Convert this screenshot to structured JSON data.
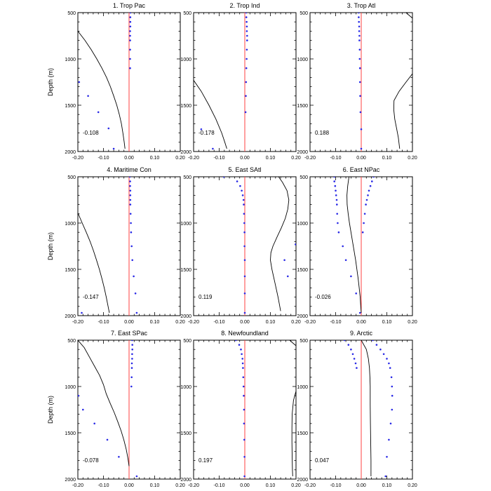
{
  "figure": {
    "ylabel": "Depth (m)",
    "colors": {
      "zero_line": "#ff4040",
      "dots": "#2a2ae6",
      "curve": "#000000",
      "axes": "#000000"
    }
  },
  "chart_data": [
    {
      "type": "scatter",
      "title": "1. Trop Pac",
      "annotation": "-0.108",
      "xlim": [
        -0.2,
        0.2
      ],
      "ylim": [
        2000,
        500
      ],
      "xticks": [
        "-0.20",
        "-0.10",
        "0.00",
        "0.10",
        "0.20"
      ],
      "yticks": [
        "500",
        "1000",
        "1500",
        "2000"
      ],
      "series": [
        {
          "kind": "points",
          "depth": [
            500,
            550,
            600,
            650,
            700,
            750,
            800,
            900,
            1000,
            1100,
            1250,
            1400,
            1575,
            1750,
            1970
          ],
          "x": [
            0.005,
            0.005,
            0.005,
            0.005,
            0.004,
            0.004,
            0.004,
            0.004,
            0.004,
            0.004,
            -0.195,
            -0.16,
            -0.12,
            -0.08,
            -0.06
          ]
        },
        {
          "kind": "line",
          "depth": [
            700,
            800,
            900,
            1000,
            1100,
            1200,
            1300,
            1400,
            1500,
            1600,
            1700,
            1800,
            1900,
            1970
          ],
          "x": [
            -0.2,
            -0.172,
            -0.148,
            -0.126,
            -0.106,
            -0.088,
            -0.073,
            -0.06,
            -0.048,
            -0.038,
            -0.03,
            -0.024,
            -0.019,
            -0.016
          ]
        }
      ]
    },
    {
      "type": "scatter",
      "title": "2. Trop Ind",
      "annotation": "-0.178",
      "xlim": [
        -0.2,
        0.2
      ],
      "ylim": [
        2000,
        500
      ],
      "xticks": [
        "-0.20",
        "-0.10",
        "0.00",
        "0.10",
        "0.20"
      ],
      "yticks": [
        "500",
        "1000",
        "1500",
        "2000"
      ],
      "series": [
        {
          "kind": "points",
          "depth": [
            500,
            550,
            600,
            650,
            700,
            750,
            800,
            900,
            1000,
            1100,
            1250,
            1400,
            1575,
            1760,
            1970
          ],
          "x": [
            0.005,
            0.006,
            0.007,
            0.008,
            0.008,
            0.009,
            0.009,
            0.008,
            0.007,
            0.006,
            0.005,
            0.004,
            0.003,
            -0.17,
            -0.125
          ]
        },
        {
          "kind": "line",
          "depth": [
            1230,
            1350,
            1500,
            1650,
            1800,
            1900,
            1970
          ],
          "x": [
            -0.2,
            -0.17,
            -0.14,
            -0.113,
            -0.09,
            -0.078,
            -0.07
          ]
        }
      ]
    },
    {
      "type": "scatter",
      "title": "3. Trop Atl",
      "annotation": "0.188",
      "xlim": [
        -0.2,
        0.2
      ],
      "ylim": [
        2000,
        500
      ],
      "xticks": [
        "-0.20",
        "-0.10",
        "0.00",
        "0.10",
        "0.20"
      ],
      "yticks": [
        "500",
        "1000",
        "1500",
        "2000"
      ],
      "series": [
        {
          "kind": "points",
          "depth": [
            500,
            550,
            600,
            650,
            700,
            750,
            800,
            900,
            1000,
            1100,
            1250,
            1400,
            1575,
            1760,
            1970
          ],
          "x": [
            -0.01,
            -0.01,
            -0.009,
            -0.008,
            -0.008,
            -0.007,
            -0.007,
            -0.006,
            -0.006,
            -0.005,
            -0.005,
            -0.004,
            -0.003,
            0.0,
            0.0
          ]
        },
        {
          "kind": "line",
          "depth": [
            500,
            560
          ],
          "x": [
            0.175,
            0.2
          ]
        },
        {
          "kind": "line",
          "depth": [
            1160,
            1250,
            1350,
            1450,
            1550,
            1650,
            1750,
            1850,
            1970
          ],
          "x": [
            0.2,
            0.175,
            0.148,
            0.128,
            0.127,
            0.131,
            0.138,
            0.145,
            0.15
          ]
        }
      ]
    },
    {
      "type": "scatter",
      "title": "4. Maritime Con",
      "annotation": "-0.147",
      "xlim": [
        -0.2,
        0.2
      ],
      "ylim": [
        2000,
        500
      ],
      "xticks": [
        "-0.20",
        "-0.10",
        "0.00",
        "0.10",
        "0.20"
      ],
      "yticks": [
        "500",
        "1000",
        "1500",
        "2000"
      ],
      "series": [
        {
          "kind": "points",
          "depth": [
            500,
            550,
            600,
            650,
            700,
            750,
            800,
            900,
            1000,
            1100,
            1250,
            1400,
            1575,
            1760,
            1970
          ],
          "x": [
            0.003,
            0.004,
            0.004,
            0.005,
            0.005,
            0.005,
            0.005,
            0.006,
            0.007,
            0.008,
            0.01,
            0.013,
            0.018,
            0.025,
            -0.185
          ]
        },
        {
          "kind": "points",
          "depth": [
            1970
          ],
          "x": [
            0.03
          ]
        },
        {
          "kind": "line",
          "depth": [
            890,
            1000,
            1100,
            1200,
            1300,
            1400,
            1500,
            1600,
            1700,
            1800,
            1900,
            1970
          ],
          "x": [
            -0.2,
            -0.183,
            -0.167,
            -0.152,
            -0.139,
            -0.127,
            -0.116,
            -0.106,
            -0.097,
            -0.089,
            -0.082,
            -0.077
          ]
        }
      ]
    },
    {
      "type": "scatter",
      "title": "5. East SAtl",
      "annotation": "0.119",
      "xlim": [
        -0.2,
        0.2
      ],
      "ylim": [
        2000,
        500
      ],
      "xticks": [
        "-0.20",
        "-0.10",
        "0.00",
        "0.10",
        "0.20"
      ],
      "yticks": [
        "500",
        "1000",
        "1500",
        "2000"
      ],
      "series": [
        {
          "kind": "points",
          "depth": [
            500,
            550,
            600,
            650,
            700,
            750,
            800,
            900,
            1000,
            1100,
            1250,
            1400,
            1575,
            1760,
            1970
          ],
          "x": [
            -0.082,
            -0.03,
            -0.018,
            -0.012,
            -0.008,
            -0.005,
            -0.004,
            -0.003,
            -0.002,
            -0.001,
            -0.001,
            0.0,
            0.0,
            0.0,
            0.0
          ]
        },
        {
          "kind": "points",
          "depth": [
            1230,
            1400,
            1575
          ],
          "x": [
            0.198,
            0.155,
            0.168
          ]
        },
        {
          "kind": "line",
          "depth": [
            500,
            560,
            650,
            750,
            850,
            950,
            1050,
            1150,
            1250,
            1320,
            1400,
            1500,
            1650,
            1800,
            1950
          ],
          "x": [
            0.132,
            0.147,
            0.165,
            0.172,
            0.168,
            0.158,
            0.143,
            0.126,
            0.11,
            0.102,
            0.1,
            0.106,
            0.118,
            0.13,
            0.14
          ]
        }
      ]
    },
    {
      "type": "scatter",
      "title": "6. East NPac",
      "annotation": "-0.026",
      "xlim": [
        -0.2,
        0.2
      ],
      "ylim": [
        2000,
        500
      ],
      "xticks": [
        "-0.20",
        "-0.10",
        "0.00",
        "0.10",
        "0.20"
      ],
      "yticks": [
        "500",
        "1000",
        "1500",
        "2000"
      ],
      "series": [
        {
          "kind": "points",
          "depth": [
            500,
            550,
            600,
            650,
            700,
            750,
            800,
            900,
            1000,
            1100,
            1250,
            1400,
            1575,
            1760,
            1970
          ],
          "x": [
            -0.105,
            -0.105,
            -0.102,
            -0.1,
            -0.098,
            -0.096,
            -0.095,
            -0.094,
            -0.092,
            -0.088,
            -0.072,
            -0.06,
            -0.04,
            -0.02,
            -0.005
          ]
        },
        {
          "kind": "points",
          "depth": [
            500,
            550,
            600,
            650,
            700,
            750,
            800,
            900,
            1000,
            1100
          ],
          "x": [
            0.048,
            0.042,
            0.036,
            0.03,
            0.026,
            0.022,
            0.018,
            0.014,
            0.01,
            0.006
          ]
        },
        {
          "kind": "line",
          "depth": [
            500,
            600,
            700,
            800,
            900,
            1000,
            1100,
            1200,
            1300,
            1400,
            1500,
            1600,
            1700,
            1800,
            1900,
            1970
          ],
          "x": [
            -0.048,
            -0.053,
            -0.056,
            -0.055,
            -0.051,
            -0.046,
            -0.04,
            -0.034,
            -0.028,
            -0.022,
            -0.017,
            -0.012,
            -0.008,
            -0.004,
            -0.002,
            0.0
          ]
        }
      ]
    },
    {
      "type": "scatter",
      "title": "7. East SPac",
      "annotation": "-0.078",
      "xlim": [
        -0.2,
        0.2
      ],
      "ylim": [
        2000,
        500
      ],
      "xticks": [
        "-0.20",
        "-0.10",
        "0.00",
        "0.10",
        "0.20"
      ],
      "yticks": [
        "500",
        "1000",
        "1500",
        "2000"
      ],
      "series": [
        {
          "kind": "points",
          "depth": [
            500,
            550,
            600,
            650,
            700,
            750,
            800,
            900,
            1000,
            1100,
            1250,
            1400,
            1575,
            1760,
            1970
          ],
          "x": [
            0.012,
            0.013,
            0.013,
            0.012,
            0.012,
            0.011,
            0.011,
            0.01,
            0.009,
            -0.198,
            -0.18,
            -0.135,
            -0.085,
            -0.04,
            0.03
          ]
        },
        {
          "kind": "line",
          "depth": [
            500,
            580,
            680,
            780,
            880,
            980,
            1080,
            1180,
            1280,
            1380,
            1480,
            1580,
            1680,
            1780,
            1860
          ],
          "x": [
            -0.2,
            -0.175,
            -0.155,
            -0.135,
            -0.115,
            -0.1,
            -0.089,
            -0.074,
            -0.058,
            -0.044,
            -0.031,
            -0.02,
            -0.011,
            -0.004,
            0.0
          ]
        }
      ]
    },
    {
      "type": "scatter",
      "title": "8. Newfoundland",
      "annotation": "0.197",
      "xlim": [
        -0.2,
        0.2
      ],
      "ylim": [
        2000,
        500
      ],
      "xticks": [
        "-0.20",
        "-0.10",
        "0.00",
        "0.10",
        "0.20"
      ],
      "yticks": [
        "500",
        "1000",
        "1500",
        "2000"
      ],
      "series": [
        {
          "kind": "points",
          "depth": [
            500,
            550,
            600,
            650,
            700,
            750,
            800,
            900,
            1000,
            1100,
            1250,
            1400,
            1575,
            1760,
            1970
          ],
          "x": [
            -0.035,
            -0.022,
            -0.015,
            -0.012,
            -0.009,
            -0.008,
            -0.007,
            -0.006,
            -0.005,
            -0.004,
            -0.003,
            -0.003,
            -0.002,
            -0.001,
            -0.001
          ]
        },
        {
          "kind": "line",
          "depth": [
            500,
            560
          ],
          "x": [
            0.175,
            0.2
          ]
        },
        {
          "kind": "line",
          "depth": [
            1050,
            1150,
            1300,
            1450,
            1600,
            1750,
            1900,
            1970
          ],
          "x": [
            0.2,
            0.19,
            0.185,
            0.184,
            0.184,
            0.185,
            0.186,
            0.187
          ]
        }
      ]
    },
    {
      "type": "scatter",
      "title": "9. Arctic",
      "annotation": "0.047",
      "xlim": [
        -0.2,
        0.2
      ],
      "ylim": [
        2000,
        500
      ],
      "xticks": [
        "-0.20",
        "-0.10",
        "0.00",
        "0.10",
        "0.20"
      ],
      "yticks": [
        "500",
        "1000",
        "1500",
        "2000"
      ],
      "series": [
        {
          "kind": "points",
          "depth": [
            500,
            550,
            600,
            650,
            700,
            750,
            800
          ],
          "x": [
            -0.065,
            -0.05,
            -0.04,
            -0.033,
            -0.027,
            -0.022,
            -0.018
          ]
        },
        {
          "kind": "points",
          "depth": [
            500,
            550,
            600,
            650,
            700,
            750,
            800,
            900,
            1000,
            1100,
            1250,
            1400,
            1575,
            1760,
            1970
          ],
          "x": [
            0.045,
            0.06,
            0.075,
            0.088,
            0.1,
            0.108,
            0.113,
            0.118,
            0.12,
            0.121,
            0.12,
            0.115,
            0.108,
            0.1,
            0.095
          ]
        },
        {
          "kind": "line",
          "depth": [
            500,
            600,
            700,
            800,
            900,
            1000,
            1100,
            1200,
            1400,
            1600,
            1800,
            1970
          ],
          "x": [
            0.0,
            0.02,
            0.028,
            0.032,
            0.034,
            0.035,
            0.035,
            0.035,
            0.036,
            0.037,
            0.038,
            0.038
          ]
        }
      ]
    }
  ]
}
